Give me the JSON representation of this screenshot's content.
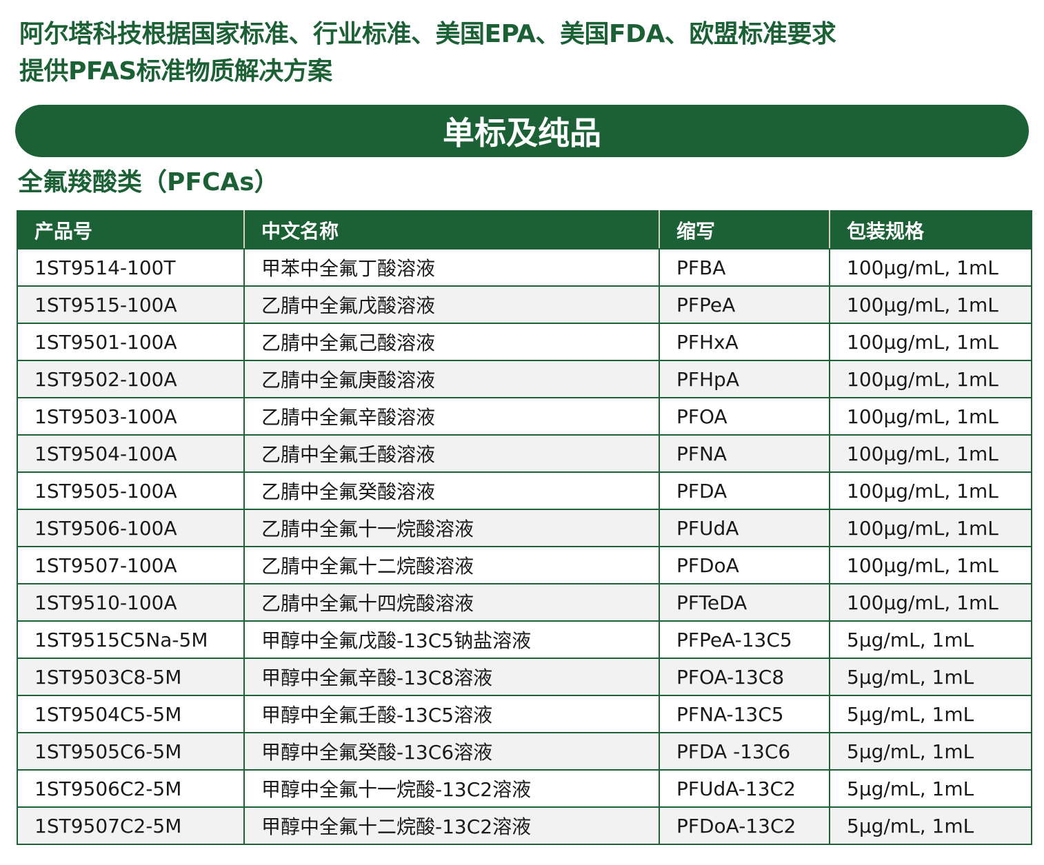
{
  "header": {
    "title_line1": "阿尔塔科技根据国家标准、行业标准、美国EPA、美国FDA、欧盟标准要求",
    "title_line2": "提供PFAS标准物质解决方案",
    "banner": "单标及纯品",
    "section": "全氟羧酸类（PFCAs）"
  },
  "colors": {
    "brand_green": "#1b6135",
    "alt_row": "#f2f2f2"
  },
  "table": {
    "columns": [
      "产品号",
      "中文名称",
      "缩写",
      "包装规格"
    ],
    "rows": [
      [
        "1ST9514-100T",
        "甲苯中全氟丁酸溶液",
        "PFBA",
        "100μg/mL, 1mL"
      ],
      [
        "1ST9515-100A",
        "乙腈中全氟戊酸溶液",
        "PFPeA",
        "100μg/mL, 1mL"
      ],
      [
        "1ST9501-100A",
        "乙腈中全氟己酸溶液",
        "PFHxA",
        "100μg/mL, 1mL"
      ],
      [
        "1ST9502-100A",
        "乙腈中全氟庚酸溶液",
        "PFHpA",
        "100μg/mL, 1mL"
      ],
      [
        "1ST9503-100A",
        "乙腈中全氟辛酸溶液",
        "PFOA",
        "100μg/mL, 1mL"
      ],
      [
        "1ST9504-100A",
        "乙腈中全氟壬酸溶液",
        "PFNA",
        "100μg/mL, 1mL"
      ],
      [
        "1ST9505-100A",
        "乙腈中全氟癸酸溶液",
        "PFDA",
        "100μg/mL, 1mL"
      ],
      [
        "1ST9506-100A",
        "乙腈中全氟十一烷酸溶液",
        "PFUdA",
        "100μg/mL, 1mL"
      ],
      [
        "1ST9507-100A",
        "乙腈中全氟十二烷酸溶液",
        "PFDoA",
        "100μg/mL, 1mL"
      ],
      [
        "1ST9510-100A",
        "乙腈中全氟十四烷酸溶液",
        "PFTeDA",
        "100μg/mL, 1mL"
      ],
      [
        "1ST9515C5Na-5M",
        "甲醇中全氟戊酸-13C5钠盐溶液",
        "PFPeA-13C5",
        "5μg/mL, 1mL"
      ],
      [
        "1ST9503C8-5M",
        "甲醇中全氟辛酸-13C8溶液",
        "PFOA-13C8",
        "5μg/mL, 1mL"
      ],
      [
        "1ST9504C5-5M",
        "甲醇中全氟壬酸-13C5溶液",
        "PFNA-13C5",
        "5μg/mL, 1mL"
      ],
      [
        "1ST9505C6-5M",
        "甲醇中全氟癸酸-13C6溶液",
        "PFDA -13C6",
        "5μg/mL, 1mL"
      ],
      [
        "1ST9506C2-5M",
        "甲醇中全氟十一烷酸-13C2溶液",
        "PFUdA-13C2",
        "5μg/mL, 1mL"
      ],
      [
        "1ST9507C2-5M",
        "甲醇中全氟十二烷酸-13C2溶液",
        "PFDoA-13C2",
        "5μg/mL, 1mL"
      ]
    ]
  }
}
